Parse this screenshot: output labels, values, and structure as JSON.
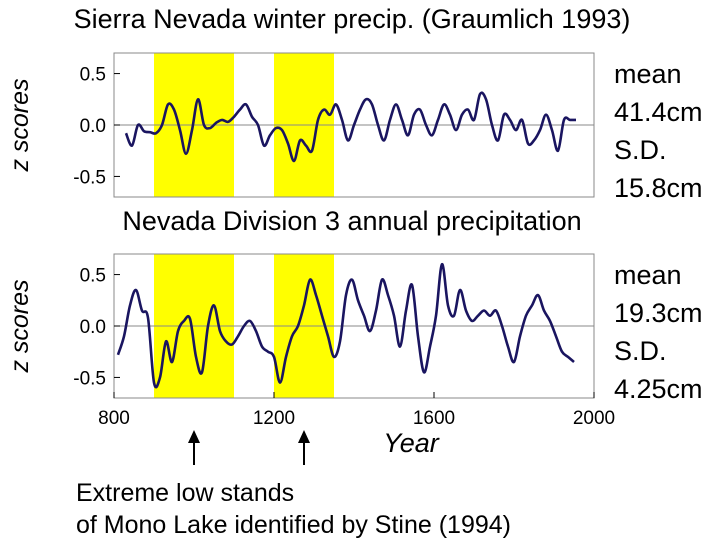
{
  "colors": {
    "line": "#1a1560",
    "highlight": "#ffff00",
    "zero_line": "#888888",
    "frame": "#888888"
  },
  "chart_data": [
    {
      "type": "line",
      "title": "Sierra Nevada winter precip. (Graumlich 1993)",
      "ylabel": "z scores",
      "xlabel": "",
      "xlim": [
        800,
        2000
      ],
      "ylim": [
        -0.7,
        0.7
      ],
      "yticks": [
        0.5,
        0.0,
        -0.5
      ],
      "ytick_labels": [
        "0.5",
        "0.0",
        "-0.5"
      ],
      "highlight_ranges": [
        [
          900,
          1100
        ],
        [
          1200,
          1350
        ]
      ],
      "stats": {
        "mean_label": "mean",
        "mean_value": "41.4cm",
        "sd_label": "S.D.",
        "sd_value": "15.8cm"
      },
      "series": [
        {
          "x": [
            830,
            845,
            860,
            875,
            890,
            905,
            920,
            935,
            950,
            965,
            980,
            995,
            1010,
            1025,
            1040,
            1055,
            1070,
            1085,
            1100,
            1115,
            1130,
            1145,
            1160,
            1175,
            1190,
            1205,
            1220,
            1235,
            1250,
            1265,
            1280,
            1295,
            1310,
            1325,
            1340,
            1355,
            1370,
            1385,
            1400,
            1415,
            1430,
            1445,
            1460,
            1475,
            1490,
            1505,
            1520,
            1535,
            1550,
            1565,
            1580,
            1595,
            1610,
            1625,
            1640,
            1655,
            1670,
            1685,
            1700,
            1715,
            1730,
            1745,
            1760,
            1775,
            1790,
            1805,
            1820,
            1835,
            1850,
            1865,
            1880,
            1895,
            1910,
            1925,
            1940,
            1955
          ],
          "y": [
            -0.08,
            -0.2,
            0.0,
            -0.06,
            -0.07,
            -0.08,
            0.0,
            0.2,
            0.15,
            -0.05,
            -0.28,
            -0.05,
            0.25,
            0.0,
            -0.03,
            0.02,
            0.05,
            0.03,
            0.08,
            0.15,
            0.2,
            0.08,
            0.0,
            -0.2,
            -0.1,
            -0.03,
            -0.05,
            -0.18,
            -0.35,
            -0.15,
            -0.2,
            -0.25,
            0.05,
            0.15,
            0.1,
            0.2,
            0.05,
            -0.15,
            0.0,
            0.15,
            0.25,
            0.2,
            0.0,
            -0.15,
            0.05,
            0.2,
            0.05,
            -0.1,
            0.1,
            0.15,
            0.0,
            -0.1,
            0.05,
            0.2,
            0.1,
            -0.05,
            0.1,
            0.15,
            0.05,
            0.3,
            0.25,
            0.0,
            -0.15,
            0.1,
            0.05,
            -0.05,
            0.05,
            -0.18,
            -0.15,
            -0.05,
            0.1,
            -0.05,
            -0.25,
            0.05,
            0.05,
            0.05
          ]
        }
      ]
    },
    {
      "type": "line",
      "title": "Nevada Division 3 annual precipitation",
      "ylabel": "z scores",
      "xlabel": "Year",
      "xlim": [
        800,
        2000
      ],
      "ylim": [
        -0.7,
        0.7
      ],
      "yticks": [
        0.5,
        0.0,
        -0.5
      ],
      "ytick_labels": [
        "0.5",
        "0.0",
        "-0.5"
      ],
      "xticks": [
        800,
        1200,
        1600,
        2000
      ],
      "xtick_labels": [
        "800",
        "1200",
        "1600",
        "2000"
      ],
      "highlight_ranges": [
        [
          900,
          1100
        ],
        [
          1200,
          1350
        ]
      ],
      "stats": {
        "mean_label": "mean",
        "mean_value": "19.3cm",
        "sd_label": "S.D.",
        "sd_value": "4.25cm"
      },
      "series": [
        {
          "x": [
            810,
            825,
            840,
            855,
            870,
            885,
            900,
            915,
            930,
            945,
            960,
            975,
            990,
            1005,
            1020,
            1035,
            1050,
            1065,
            1080,
            1095,
            1110,
            1125,
            1140,
            1155,
            1170,
            1185,
            1200,
            1215,
            1230,
            1245,
            1260,
            1275,
            1290,
            1305,
            1320,
            1335,
            1350,
            1365,
            1380,
            1395,
            1410,
            1425,
            1440,
            1455,
            1470,
            1485,
            1500,
            1515,
            1530,
            1545,
            1560,
            1575,
            1590,
            1605,
            1620,
            1635,
            1650,
            1665,
            1680,
            1695,
            1710,
            1725,
            1740,
            1755,
            1770,
            1785,
            1800,
            1815,
            1830,
            1845,
            1860,
            1875,
            1890,
            1905,
            1920,
            1935,
            1950
          ],
          "y": [
            -0.28,
            -0.1,
            0.2,
            0.35,
            0.15,
            0.08,
            -0.55,
            -0.5,
            -0.15,
            -0.35,
            -0.05,
            0.05,
            0.07,
            -0.3,
            -0.45,
            0.0,
            0.2,
            -0.05,
            -0.15,
            -0.18,
            -0.1,
            0.0,
            0.05,
            -0.05,
            -0.2,
            -0.25,
            -0.3,
            -0.55,
            -0.3,
            -0.1,
            0.0,
            0.2,
            0.45,
            0.3,
            0.1,
            -0.1,
            -0.3,
            -0.15,
            0.3,
            0.45,
            0.25,
            0.1,
            -0.05,
            0.15,
            0.45,
            0.3,
            0.1,
            -0.2,
            0.15,
            0.4,
            -0.1,
            -0.45,
            -0.2,
            0.1,
            0.6,
            0.2,
            0.1,
            0.35,
            0.15,
            0.05,
            0.1,
            0.15,
            0.1,
            0.15,
            0.0,
            -0.2,
            -0.35,
            -0.1,
            0.1,
            0.2,
            0.3,
            0.15,
            0.05,
            -0.1,
            -0.25,
            -0.3,
            -0.35
          ]
        }
      ]
    }
  ],
  "annotation": {
    "line1": "Extreme low stands",
    "line2": "of Mono Lake identified by Stine (1994)",
    "arrow_years": [
      1000,
      1275
    ]
  }
}
